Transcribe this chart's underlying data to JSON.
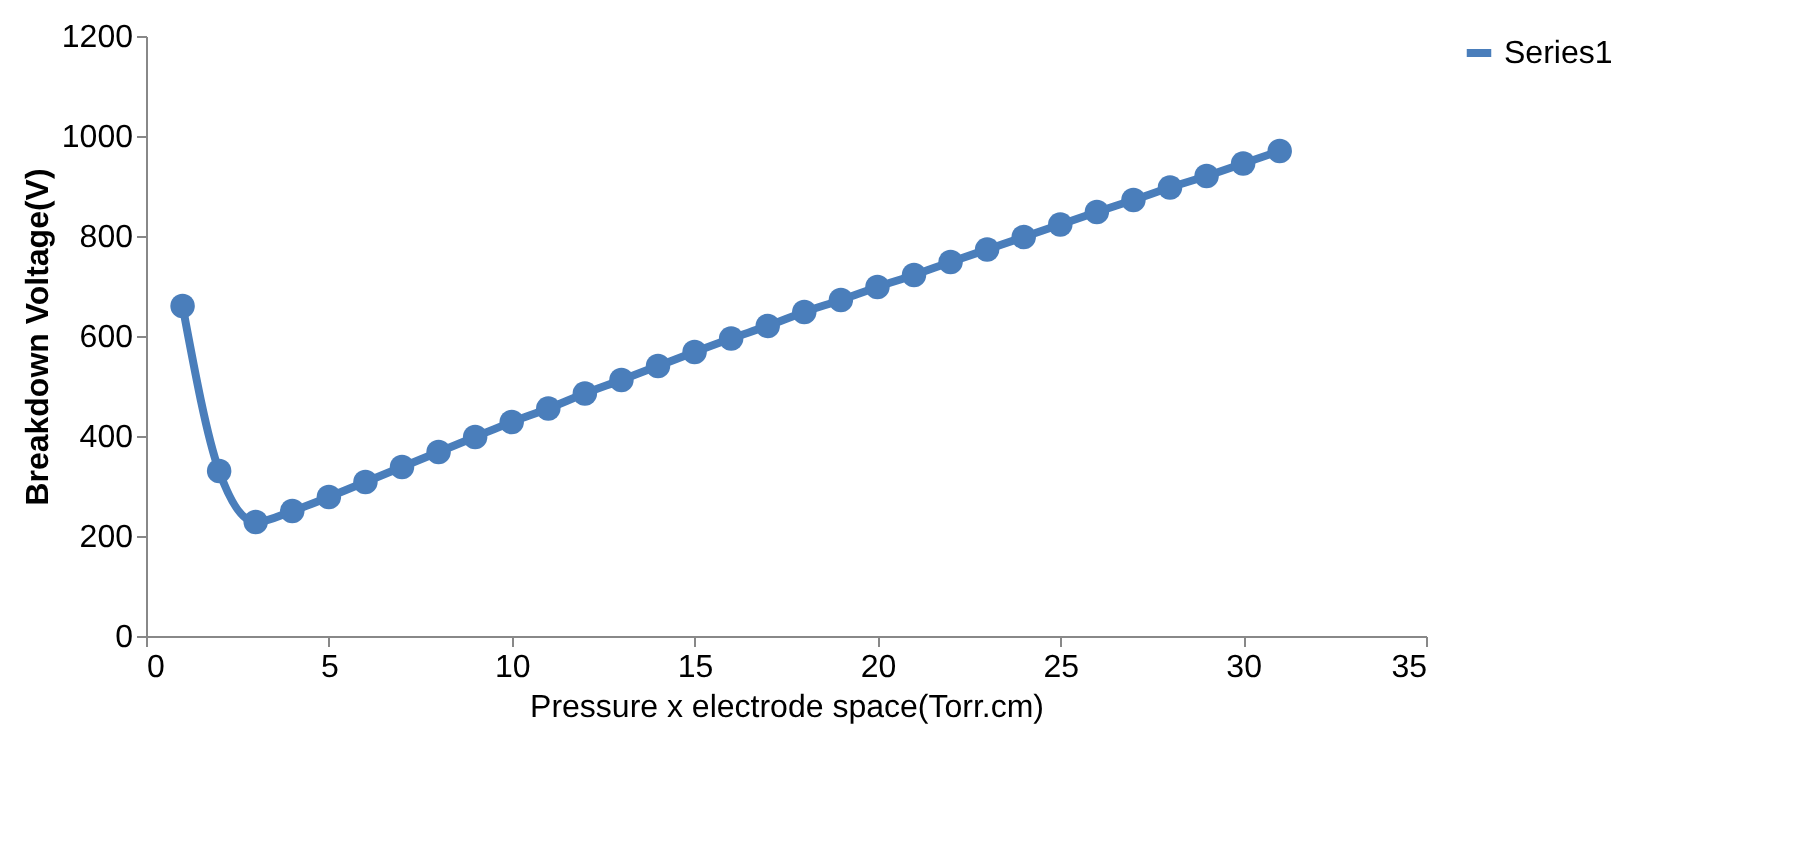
{
  "chart_data": {
    "type": "line",
    "xlabel": "Pressure x electrode space(Torr.cm)",
    "ylabel": "Breakdown Voltage(V)",
    "x": [
      1,
      2,
      3,
      4,
      5,
      6,
      7,
      8,
      9,
      10,
      11,
      12,
      13,
      14,
      15,
      16,
      17,
      18,
      19,
      20,
      21,
      22,
      23,
      24,
      25,
      26,
      27,
      28,
      29,
      30,
      31
    ],
    "series": [
      {
        "name": "Series1",
        "color": "#4a7ebb",
        "values": [
          660,
          330,
          228,
          250,
          278,
          308,
          338,
          368,
          398,
          428,
          455,
          485,
          512,
          540,
          568,
          595,
          620,
          648,
          672,
          698,
          722,
          748,
          773,
          798,
          823,
          848,
          872,
          897,
          920,
          945,
          970
        ]
      }
    ],
    "xlim": [
      0,
      35
    ],
    "xticks": [
      0,
      5,
      10,
      15,
      20,
      25,
      30,
      35
    ],
    "ylim": [
      0,
      1200
    ],
    "yticks": [
      0,
      200,
      400,
      600,
      800,
      1000,
      1200
    ],
    "grid": false,
    "legend": "right",
    "marker": "circle",
    "line_style": "solid"
  }
}
